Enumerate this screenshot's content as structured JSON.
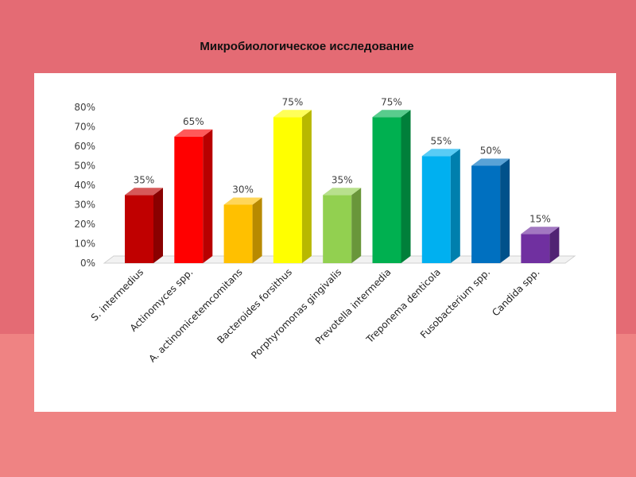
{
  "slide": {
    "title": "Микробиологическое исследование"
  },
  "chart_data": {
    "type": "bar",
    "title": "",
    "xlabel": "",
    "ylabel": "",
    "ylim": [
      0,
      80
    ],
    "yticks": [
      "0%",
      "10%",
      "20%",
      "30%",
      "40%",
      "50%",
      "60%",
      "70%",
      "80%"
    ],
    "grid": false,
    "legend": "none",
    "categories": [
      "S. intermedius",
      "Actinomyces spp.",
      "A. actinomicetemcomitans",
      "Bacteroides forsithus",
      "Porphyromonas gingivalis",
      "Prevotella intermedia",
      "Treponema denticola",
      "Fusobacterium spp.",
      "Candida spp."
    ],
    "values": [
      35,
      65,
      30,
      75,
      35,
      75,
      55,
      50,
      15
    ],
    "value_labels": [
      "35%",
      "65%",
      "30%",
      "75%",
      "35%",
      "75%",
      "55%",
      "50%",
      "15%"
    ],
    "colors": [
      "#c00000",
      "#ff0000",
      "#ffc000",
      "#ffff00",
      "#92d050",
      "#00b050",
      "#00b0f0",
      "#0070c0",
      "#7030a0"
    ]
  }
}
